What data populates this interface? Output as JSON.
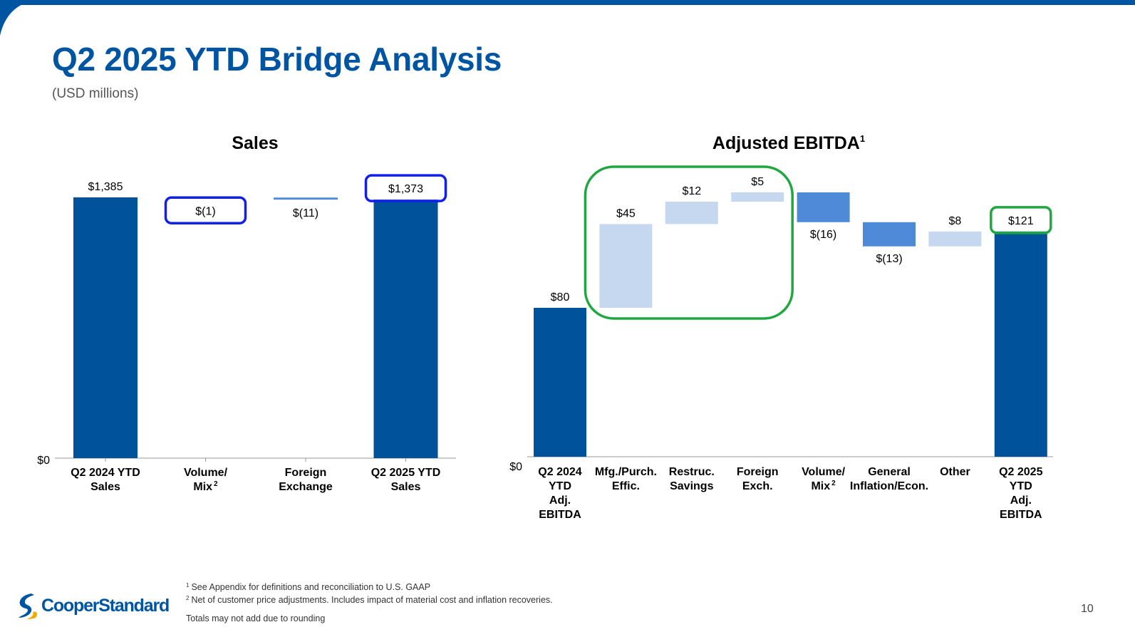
{
  "slide": {
    "title": "Q2 2025 YTD Bridge Analysis",
    "subtitle": "(USD millions)",
    "page_number": "10",
    "logo_text": "CooperStandard"
  },
  "footnotes": {
    "note1_marker": "1",
    "note1": "See Appendix for definitions and reconciliation to U.S. GAAP",
    "note2_marker": "2",
    "note2": "Net of customer price adjustments. Includes impact of material cost and inflation recoveries.",
    "rounding": "Totals may not add due to rounding"
  },
  "colors": {
    "brand_blue": "#0055a2",
    "total_bar": "#00529b",
    "increase_bar": "#c5d8f0",
    "decrease_bar": "#4f8ad8",
    "highlight_blue": "#1020e8",
    "highlight_green": "#20a840"
  },
  "chart_data": [
    {
      "type": "bar",
      "subtype": "waterfall",
      "title": "Sales",
      "title_superscript": "",
      "ylim": [
        0,
        1385
      ],
      "zero_label": "$0",
      "steps": [
        {
          "category": [
            "Q2 2024 YTD",
            "Sales"
          ],
          "sup": "",
          "kind": "total",
          "value": 1385,
          "label": "$1,385",
          "highlight": false
        },
        {
          "category": [
            "Volume/",
            "Mix"
          ],
          "sup": "2",
          "kind": "delta",
          "value": -1,
          "label": "$(1)",
          "highlight": true
        },
        {
          "category": [
            "Foreign",
            "Exchange"
          ],
          "sup": "",
          "kind": "delta",
          "value": -11,
          "label": "$(11)",
          "highlight": false
        },
        {
          "category": [
            "Q2 2025 YTD",
            "Sales"
          ],
          "sup": "",
          "kind": "total",
          "value": 1373,
          "label": "$1,373",
          "highlight": true
        }
      ]
    },
    {
      "type": "bar",
      "subtype": "waterfall",
      "title": "Adjusted EBITDA",
      "title_superscript": "1",
      "ylim": [
        0,
        142
      ],
      "zero_label": "$0",
      "highlight_group": [
        1,
        3
      ],
      "steps": [
        {
          "category": [
            "Q2 2024",
            "YTD",
            "Adj.",
            "EBITDA"
          ],
          "sup": "",
          "kind": "total",
          "value": 80,
          "label": "$80",
          "highlight": false
        },
        {
          "category": [
            "Mfg./Purch.",
            "Effic."
          ],
          "sup": "",
          "kind": "delta",
          "value": 45,
          "label": "$45",
          "highlight": false
        },
        {
          "category": [
            "Restruc.",
            "Savings"
          ],
          "sup": "",
          "kind": "delta",
          "value": 12,
          "label": "$12",
          "highlight": false
        },
        {
          "category": [
            "Foreign",
            "Exch."
          ],
          "sup": "",
          "kind": "delta",
          "value": 5,
          "label": "$5",
          "highlight": false
        },
        {
          "category": [
            "Volume/",
            "Mix"
          ],
          "sup": "2",
          "kind": "delta",
          "value": -16,
          "label": "$(16)",
          "highlight": false
        },
        {
          "category": [
            "General",
            "Inflation/Econ."
          ],
          "sup": "",
          "kind": "delta",
          "value": -13,
          "label": "$(13)",
          "highlight": false
        },
        {
          "category": [
            "Other"
          ],
          "sup": "",
          "kind": "delta",
          "value": 8,
          "label": "$8",
          "highlight": false
        },
        {
          "category": [
            "Q2 2025",
            "YTD",
            "Adj.",
            "EBITDA"
          ],
          "sup": "",
          "kind": "total",
          "value": 121,
          "label": "$121",
          "highlight": true
        }
      ]
    }
  ]
}
